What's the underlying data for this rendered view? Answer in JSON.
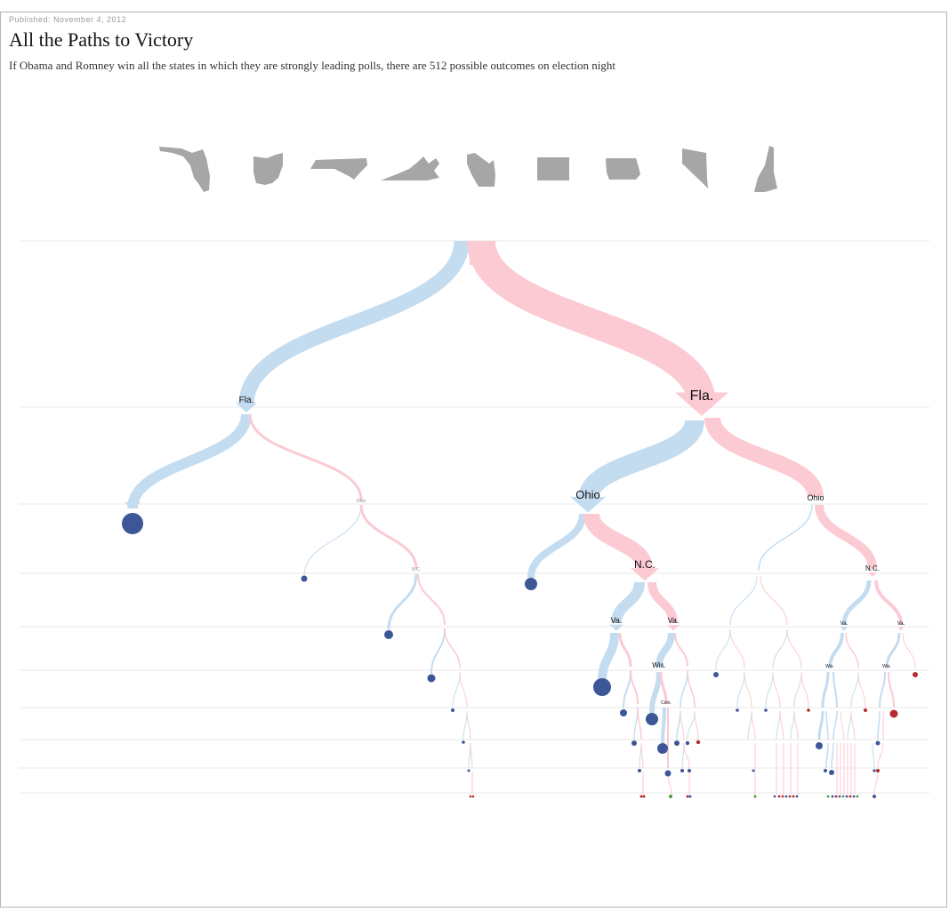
{
  "published": "Published: November 4, 2012",
  "title": "All the Paths to Victory",
  "subtitle": "If Obama and Romney win all the states in which they are strongly leading polls, there are 512 possible outcomes on election night",
  "state_icons": [
    "florida-icon",
    "ohio-icon",
    "north-carolina-icon",
    "virginia-icon",
    "wisconsin-icon",
    "colorado-icon",
    "iowa-icon",
    "nevada-icon",
    "new-hampshire-icon"
  ],
  "colors": {
    "obama_branch": "#c4dcf0",
    "romney_branch": "#fccad3",
    "obama_win": "#3d5796",
    "romney_win": "#b62a2f",
    "tie": "#4f9a3a",
    "state_shape": "#a6a6a6",
    "rule": "#e9e9e9"
  },
  "labels": {
    "fla_left": "Fla.",
    "fla_right": "Fla.",
    "ohio_small": "Ohio",
    "ohio_mid": "Ohio",
    "ohio_big": "Ohio",
    "nc_small": "N.C.",
    "nc_big": "N.C.",
    "nc_right": "N.C.",
    "va_left": "Va.",
    "va_right": "Va.",
    "va_r1": "Va.",
    "va_r2": "Va.",
    "wis_mid": "Wis.",
    "wis_r1": "Wis.",
    "wis_r2": "Wis.",
    "colo": "Colo."
  }
}
